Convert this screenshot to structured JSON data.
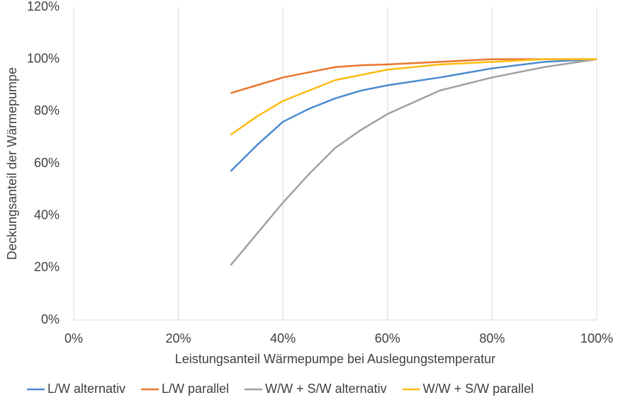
{
  "chart_data": {
    "type": "line",
    "x_label": "Leistungsanteil Wärmepumpe bei Auslegungstemperatur",
    "y_label": "Deckungsanteil der Wärmepumpe",
    "x": [
      30,
      35,
      40,
      45,
      50,
      55,
      60,
      70,
      80,
      90,
      100
    ],
    "series": [
      {
        "name": "L/W alternativ",
        "color": "#4a8ad0",
        "values": [
          57,
          67,
          76,
          81,
          85,
          88,
          90,
          93,
          96.5,
          99,
          100
        ]
      },
      {
        "name": "L/W parallel",
        "color": "#e9762d",
        "values": [
          87,
          90,
          93,
          95,
          97,
          97.7,
          98,
          99,
          100,
          100,
          100
        ]
      },
      {
        "name": "W/W + S/W alternativ",
        "color": "#a0a0a0",
        "values": [
          21,
          33,
          45,
          56,
          66,
          73,
          79,
          88,
          93,
          97,
          100
        ]
      },
      {
        "name": "W/W + S/W parallel",
        "color": "#fdbb10",
        "values": [
          71,
          78,
          84,
          88,
          92,
          94,
          96,
          98,
          99,
          100,
          100
        ]
      }
    ],
    "xlim": [
      0,
      100
    ],
    "xticks": [
      {
        "value": 0,
        "label": "0%"
      },
      {
        "value": 20,
        "label": "20%"
      },
      {
        "value": 40,
        "label": "40%"
      },
      {
        "value": 60,
        "label": "60%"
      },
      {
        "value": 80,
        "label": "80%"
      },
      {
        "value": 100,
        "label": "100%"
      }
    ],
    "ylim": [
      0,
      120
    ],
    "yticks": [
      {
        "value": 0,
        "label": "0%"
      },
      {
        "value": 20,
        "label": "20%"
      },
      {
        "value": 40,
        "label": "40%"
      },
      {
        "value": 60,
        "label": "60%"
      },
      {
        "value": 80,
        "label": "80%"
      },
      {
        "value": 100,
        "label": "100%"
      },
      {
        "value": 120,
        "label": "120%"
      }
    ],
    "grid": "x",
    "legend": "bottom"
  }
}
